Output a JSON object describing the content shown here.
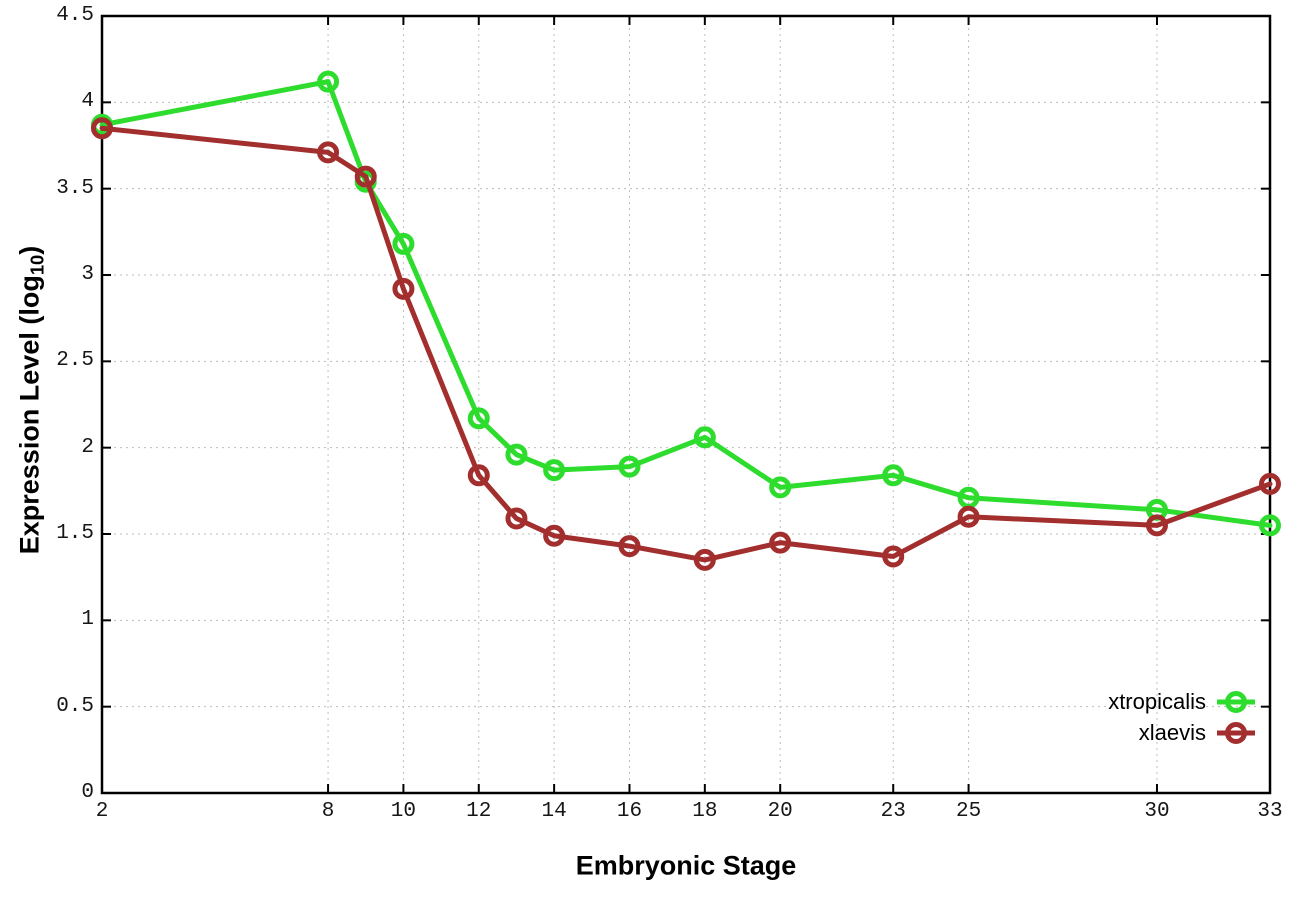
{
  "figure": {
    "background_color": "#ffffff",
    "border_color": "#000000",
    "grid_color": "#bdbdbd",
    "tick_color": "#000000"
  },
  "chart_data": {
    "type": "line",
    "title": "",
    "xlabel": "Embryonic Stage",
    "ylabel": "Expression Level (log10)",
    "ylabel_parts": {
      "prefix": "Expression Level (log",
      "sub": "10",
      "suffix": ")"
    },
    "xlim": [
      2,
      33
    ],
    "ylim": [
      0,
      4.5
    ],
    "grid": true,
    "grid_style": "dotted",
    "legend_position": "bottom-right",
    "marker": "open-circle",
    "x_ticks": [
      2,
      8,
      10,
      12,
      14,
      16,
      18,
      20,
      23,
      25,
      30,
      33
    ],
    "x_tick_labels": [
      "2",
      "8",
      "10",
      "12",
      "14",
      "16",
      "18",
      "20",
      "23",
      "25",
      "30",
      "33"
    ],
    "y_ticks": [
      0,
      0.5,
      1,
      1.5,
      2,
      2.5,
      3,
      3.5,
      4,
      4.5
    ],
    "y_tick_labels": [
      "0",
      "0.5",
      "1",
      "1.5",
      "2",
      "2.5",
      "3",
      "3.5",
      "4",
      "4.5"
    ],
    "x": [
      2,
      8,
      9,
      10,
      12,
      13,
      14,
      16,
      18,
      20,
      23,
      25,
      30,
      33
    ],
    "series": [
      {
        "name": "xtropicalis",
        "color": "#2edc2e",
        "values": [
          3.87,
          4.12,
          3.54,
          3.18,
          2.17,
          1.96,
          1.87,
          1.89,
          2.06,
          1.77,
          1.84,
          1.71,
          1.64,
          1.55
        ]
      },
      {
        "name": "xlaevis",
        "color": "#a22e2e",
        "values": [
          3.85,
          3.71,
          3.57,
          2.92,
          1.84,
          1.59,
          1.49,
          1.43,
          1.35,
          1.45,
          1.37,
          1.6,
          1.55,
          1.79
        ]
      }
    ]
  }
}
